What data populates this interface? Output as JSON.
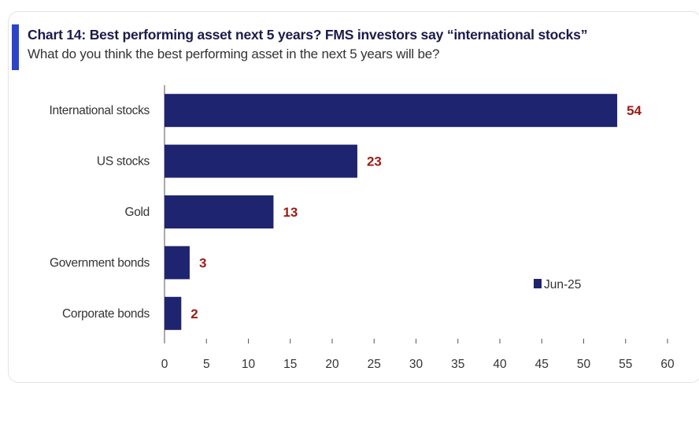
{
  "chart_data": {
    "type": "bar",
    "orientation": "horizontal",
    "title": "Chart 14: Best performing asset next 5 years? FMS investors say “international stocks”",
    "subtitle": "What do you think the best performing asset in the next 5 years will be?",
    "categories": [
      "International stocks",
      "US stocks",
      "Gold",
      "Government bonds",
      "Corporate bonds"
    ],
    "series": [
      {
        "name": "Jun-25",
        "values": [
          54,
          23,
          13,
          3,
          2
        ],
        "color": "#1f2470"
      }
    ],
    "xlim": [
      0,
      60
    ],
    "xticks": [
      0,
      5,
      10,
      15,
      20,
      25,
      30,
      35,
      40,
      45,
      50,
      55,
      60
    ],
    "grid": false,
    "legend_position": "right",
    "label_color": "#9b1c14",
    "accent_color": "#2c44c8"
  }
}
